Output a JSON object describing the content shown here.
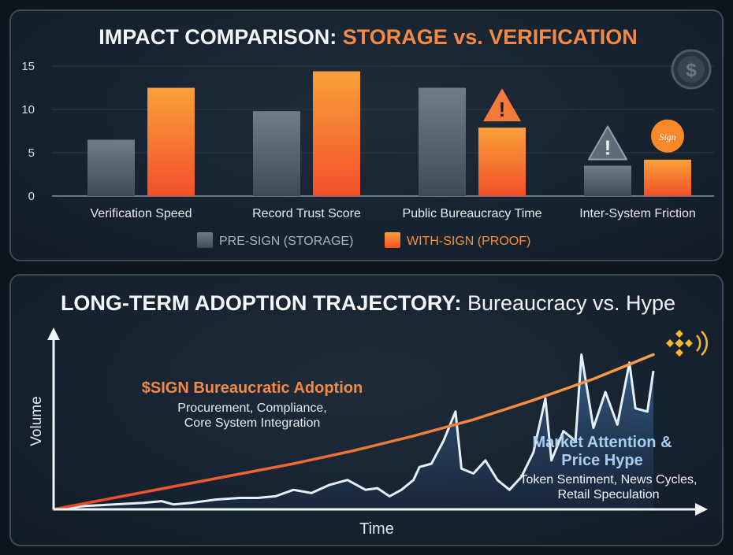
{
  "chart_data": [
    {
      "type": "bar",
      "title": "IMPACT COMPARISON:",
      "title_highlight": "STORAGE vs. VERIFICATION",
      "categories": [
        "Verification Speed",
        "Record Trust Score",
        "Public Bureaucracy Time",
        "Inter-System Friction"
      ],
      "y_ticks": [
        "0",
        "5",
        "10",
        "15"
      ],
      "ylim": [
        0,
        15
      ],
      "grid": true,
      "legend_position": "bottom-center",
      "series": [
        {
          "name": "PRE-SIGN (STORAGE)",
          "color": "#5d6c7b",
          "values": [
            6.5,
            9.8,
            12.5,
            3.5
          ]
        },
        {
          "name": "WITH-SIGN (PROOF)",
          "color": "#f7922e",
          "values": [
            12.5,
            14.4,
            7.9,
            4.2
          ]
        }
      ],
      "annotations": [
        {
          "category_index": 2,
          "series_index": 1,
          "icon": "warning-icon",
          "color": "#f47a3a"
        },
        {
          "category_index": 3,
          "series_index": 0,
          "icon": "warning-icon",
          "color": "#5d6c7b"
        },
        {
          "category_index": 3,
          "series_index": 1,
          "icon": "sign-logo-icon",
          "color": "#f7922e",
          "text": "Sign"
        }
      ],
      "corner_icon": "dollar-coin-icon",
      "corner_icon_text": "$"
    },
    {
      "type": "line",
      "title": "LONG-TERM ADOPTION TRAJECTORY:",
      "title_suffix": "Bureaucracy vs. Hype",
      "xlabel": "Time",
      "ylabel": "Volume",
      "grid": false,
      "series": [
        {
          "name": "$SIGN Bureaucratic Adoption",
          "description_lines": [
            "Procurement, Compliance,",
            "Core System Integration"
          ],
          "color": "#f28a45",
          "x": [
            0,
            10,
            20,
            30,
            40,
            50,
            60,
            70,
            80,
            90,
            100
          ],
          "values": [
            0,
            7,
            14,
            21,
            28,
            36,
            45,
            55,
            67,
            80,
            95
          ]
        },
        {
          "name": "Market Attention & Price Hype",
          "description_lines": [
            "Token Sentiment, News Cycles,",
            "Retail Speculation"
          ],
          "color": "#e6f0fa",
          "x": [
            0,
            5,
            10,
            15,
            18,
            20,
            23,
            27,
            31,
            34,
            37,
            40,
            43,
            46,
            49,
            52,
            54,
            56,
            58,
            60,
            61,
            63,
            65,
            67,
            68,
            70,
            72,
            74,
            76,
            78,
            80,
            82,
            83,
            85,
            87,
            88,
            90,
            92,
            94,
            96,
            97,
            99,
            100
          ],
          "values": [
            0,
            2,
            3,
            4,
            5,
            3,
            4,
            6,
            7,
            7,
            8,
            12,
            10,
            15,
            18,
            12,
            13,
            8,
            12,
            18,
            26,
            28,
            42,
            60,
            25,
            22,
            30,
            18,
            12,
            20,
            35,
            68,
            30,
            48,
            42,
            95,
            50,
            72,
            52,
            90,
            62,
            60,
            85
          ]
        }
      ],
      "corner_icon": "binance-logo-icon"
    }
  ]
}
